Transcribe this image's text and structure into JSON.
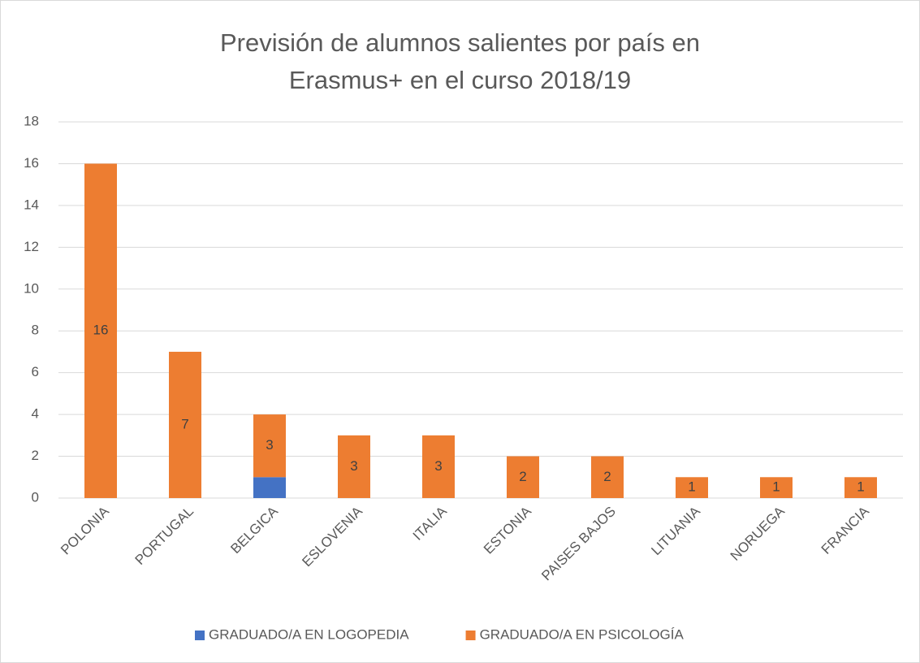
{
  "chart_data": {
    "type": "stacked_bar",
    "title": "Previsión de alumnos salientes por país en Erasmus+ en el curso 2018/19",
    "categories": [
      "POLONIA",
      "PORTUGAL",
      "BELGICA",
      "ESLOVENIA",
      "ITALIA",
      "ESTONIA",
      "PAISES BAJOS",
      "LITUANIA",
      "NORUEGA",
      "FRANCIA"
    ],
    "series": [
      {
        "name": "GRADUADO/A EN LOGOPEDIA",
        "color": "#4472c4",
        "values": [
          null,
          null,
          1,
          null,
          null,
          null,
          null,
          null,
          null,
          null
        ],
        "data_labels": false
      },
      {
        "name": "GRADUADO/A EN PSICOLOGÍA",
        "color": "#ed7d31",
        "values": [
          16,
          7,
          3,
          3,
          3,
          2,
          2,
          1,
          1,
          1
        ],
        "data_labels": true
      }
    ],
    "ylim": [
      0,
      18
    ],
    "yticks": [
      0,
      2,
      4,
      6,
      8,
      10,
      12,
      14,
      16,
      18
    ],
    "grid": true,
    "legend": "bottom"
  }
}
